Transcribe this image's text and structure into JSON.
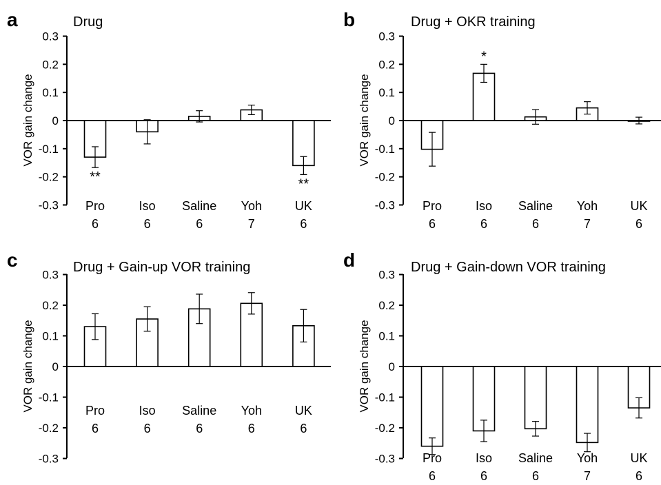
{
  "chart_data": [
    {
      "panel": "a",
      "type": "bar",
      "title": "Drug",
      "ylabel": "VOR gain change",
      "ylim": [
        -0.3,
        0.3
      ],
      "yticks": [
        "0.3",
        "0.2",
        "0.1",
        "0",
        "-0.1",
        "-0.2",
        "-0.3"
      ],
      "categories": [
        "Pro",
        "Iso",
        "Saline",
        "Yoh",
        "UK"
      ],
      "n": [
        "6",
        "6",
        "6",
        "7",
        "6"
      ],
      "values": [
        -0.13,
        -0.04,
        0.015,
        0.038,
        -0.16
      ],
      "errors": [
        0.037,
        0.043,
        0.02,
        0.017,
        0.032
      ],
      "significance": [
        "**",
        "",
        "",
        "",
        "**"
      ]
    },
    {
      "panel": "b",
      "type": "bar",
      "title": "Drug + OKR training",
      "ylabel": "VOR gain change",
      "ylim": [
        -0.3,
        0.3
      ],
      "yticks": [
        "0.3",
        "0.2",
        "0.1",
        "0",
        "-0.1",
        "-0.2",
        "-0.3"
      ],
      "categories": [
        "Pro",
        "Iso",
        "Saline",
        "Yoh",
        "UK"
      ],
      "n": [
        "6",
        "6",
        "6",
        "7",
        "6"
      ],
      "values": [
        -0.102,
        0.168,
        0.013,
        0.045,
        0.0
      ],
      "errors": [
        0.06,
        0.032,
        0.026,
        0.022,
        0.012
      ],
      "significance": [
        "",
        "*",
        "",
        "",
        ""
      ]
    },
    {
      "panel": "c",
      "type": "bar",
      "title": "Drug + Gain-up VOR training",
      "ylabel": "VOR gain change",
      "ylim": [
        -0.3,
        0.3
      ],
      "yticks": [
        "0.3",
        "0.2",
        "0.1",
        "0",
        "-0.1",
        "-0.2",
        "-0.3"
      ],
      "categories": [
        "Pro",
        "Iso",
        "Saline",
        "Yoh",
        "UK"
      ],
      "n": [
        "6",
        "6",
        "6",
        "6",
        "6"
      ],
      "values": [
        0.13,
        0.155,
        0.188,
        0.206,
        0.133
      ],
      "errors": [
        0.042,
        0.04,
        0.048,
        0.035,
        0.053
      ],
      "significance": [
        "",
        "",
        "",
        "",
        ""
      ]
    },
    {
      "panel": "d",
      "type": "bar",
      "title": "Drug + Gain-down VOR training",
      "ylabel": "VOR gain change",
      "ylim": [
        -0.3,
        0.3
      ],
      "yticks": [
        "0.3",
        "0.2",
        "0.1",
        "0",
        "-0.1",
        "-0.2",
        "-0.3"
      ],
      "categories": [
        "Pro",
        "Iso",
        "Saline",
        "Yoh",
        "UK"
      ],
      "n": [
        "6",
        "6",
        "6",
        "7",
        "6"
      ],
      "values": [
        -0.26,
        -0.21,
        -0.203,
        -0.248,
        -0.135
      ],
      "errors": [
        0.027,
        0.035,
        0.024,
        0.03,
        0.033
      ],
      "significance": [
        "",
        "",
        "",
        "",
        ""
      ]
    }
  ],
  "style": {
    "bar_fill": "#ffffff",
    "bar_stroke": "#000000",
    "axis_color": "#000000"
  }
}
